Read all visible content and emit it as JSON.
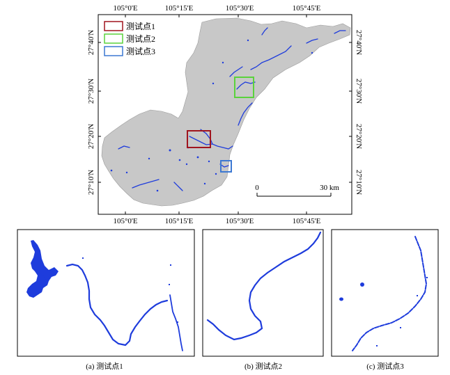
{
  "main_map": {
    "top_ticks": [
      "105°0'E",
      "105°15'E",
      "105°30'E",
      "105°45'E"
    ],
    "bottom_ticks": [
      "105°0'E",
      "105°15'E",
      "105°30'E",
      "105°45'E"
    ],
    "left_ticks": [
      "27°40'N",
      "27°30'N",
      "27°20'N",
      "27°10'N"
    ],
    "right_ticks": [
      "27°40'N",
      "27°30'N",
      "27°20'N",
      "27°10'N"
    ],
    "legend": [
      {
        "label": "测试点1",
        "color": "#a0141e"
      },
      {
        "label": "测试点2",
        "color": "#5ad23c"
      },
      {
        "label": "测试点3",
        "color": "#3c78d2"
      }
    ],
    "scalebar": {
      "start": "0",
      "end": "30 km"
    }
  },
  "colors": {
    "land": "#c8c8c8",
    "water": "#1e3cdc"
  },
  "panels": [
    {
      "caption": "(a) 测试点1"
    },
    {
      "caption": "(b) 测试点2"
    },
    {
      "caption": "(c) 测试点3"
    }
  ]
}
